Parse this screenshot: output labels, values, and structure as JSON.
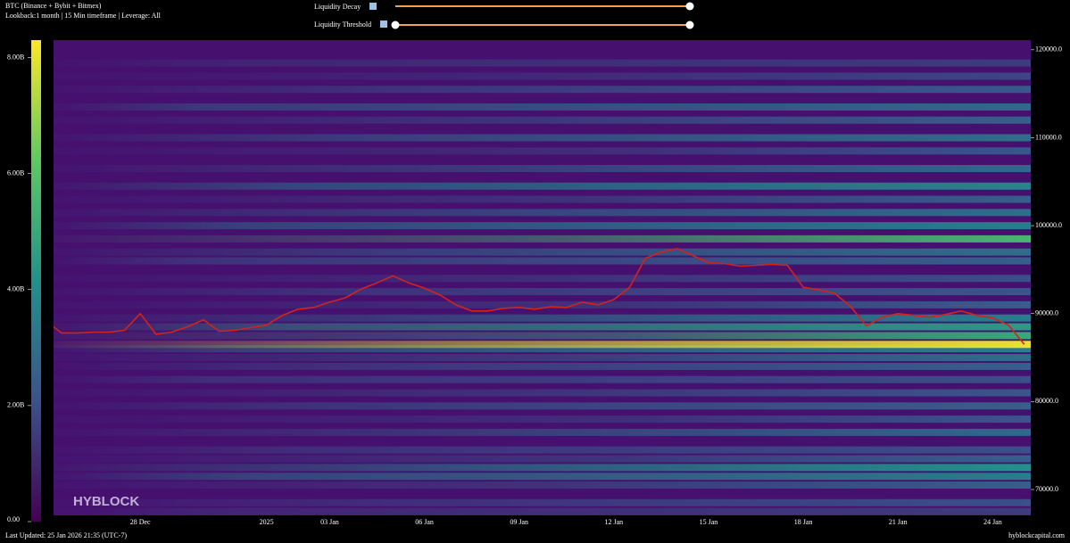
{
  "chart_data": {
    "type": "heatmap",
    "title": "BTC (Binance + Bybit + Bitmex)",
    "subtitle": "Lookback:1 month | 15 Min timeframe | Leverage: All",
    "watermark": "HYBLOCK",
    "categories": [
      null,
      null,
      null,
      null,
      null,
      null,
      "28 Dec",
      null,
      null,
      null,
      null,
      null,
      null,
      null,
      "2025",
      null,
      null,
      null,
      "03 Jan",
      null,
      null,
      null,
      null,
      null,
      "06 Jan",
      null,
      null,
      null,
      null,
      null,
      "09 Jan",
      null,
      null,
      null,
      null,
      null,
      "12 Jan",
      null,
      null,
      null,
      null,
      null,
      "15 Jan",
      null,
      null,
      null,
      null,
      null,
      "18 Jan",
      null,
      null,
      null,
      null,
      null,
      "21 Jan",
      null,
      null,
      null,
      null,
      null,
      "24 Jan",
      null,
      null
    ],
    "series": [
      {
        "color": "#d4231a",
        "values": [
          89200,
          87800,
          87800,
          87900,
          87900,
          88100,
          90000,
          87650,
          87900,
          88500,
          89300,
          88000,
          88100,
          88400,
          88700,
          89800,
          90500,
          90700,
          91300,
          91800,
          92800,
          93500,
          94300,
          93500,
          92900,
          92100,
          91000,
          90300,
          90300,
          90600,
          90700,
          90500,
          90800,
          90700,
          91300,
          91000,
          91600,
          93000,
          96300,
          97000,
          97400,
          96600,
          95800,
          95700,
          95400,
          95500,
          95600,
          95500,
          93000,
          92700,
          92300,
          90800,
          88600,
          89600,
          90000,
          89800,
          89600,
          89900,
          90300,
          89800,
          89500,
          88700,
          86500
        ]
      }
    ],
    "levels": [
      67500,
      68500,
      70500,
      71500,
      72500,
      73500,
      74500,
      76500,
      78000,
      79500,
      81000,
      82500,
      84000,
      85000,
      86000,
      86500,
      87500,
      88500,
      89500,
      91000,
      92500,
      94000,
      96000,
      97000,
      98500,
      100000,
      101500,
      103000,
      104500,
      106500,
      108500,
      110000,
      112000,
      113500,
      115500,
      117000,
      118500
    ],
    "liquidity": [
      1500000000,
      2000000000,
      2500000000,
      3500000000,
      4200000000,
      2500000000,
      2000000000,
      2800000000,
      2200000000,
      2500000000,
      2200000000,
      2000000000,
      2500000000,
      3000000000,
      3500000000,
      8000000000,
      5000000000,
      4500000000,
      3500000000,
      2500000000,
      2200000000,
      2000000000,
      2500000000,
      3000000000,
      5500000000,
      3500000000,
      3000000000,
      2500000000,
      3800000000,
      2800000000,
      2200000000,
      3000000000,
      2500000000,
      2800000000,
      2300000000,
      1800000000,
      1500000000
    ],
    "ylim": [
      67060,
      121100
    ],
    "yticks": [
      {
        "value": 70000,
        "label": "70000.0"
      },
      {
        "value": 80000,
        "label": "80000.0"
      },
      {
        "value": 90000,
        "label": "90000.0"
      },
      {
        "value": 100000,
        "label": "100000.0"
      },
      {
        "value": 110000,
        "label": "110000.0"
      },
      {
        "value": 120000,
        "label": "120000.0"
      }
    ],
    "zlim": [
      0,
      8300000000
    ],
    "zticks": [
      {
        "value": 0,
        "label": "0.00"
      },
      {
        "value": 2000000000,
        "label": "2.00B"
      },
      {
        "value": 4000000000,
        "label": "4.00B"
      },
      {
        "value": 6000000000,
        "label": "6.00B"
      },
      {
        "value": 8000000000,
        "label": "8.00B"
      }
    ],
    "colorscale": [
      "#440154",
      "#3b528b",
      "#21918c",
      "#5ec962",
      "#fde725"
    ],
    "background": "#46106f"
  },
  "controls": [
    "Liquidity Decay",
    "Liquidity Threshold"
  ],
  "footer": {
    "updated": "Last Updated: 25 Jan 2026 21:35 (UTC-7)",
    "source": "hyblockcapital.com"
  }
}
